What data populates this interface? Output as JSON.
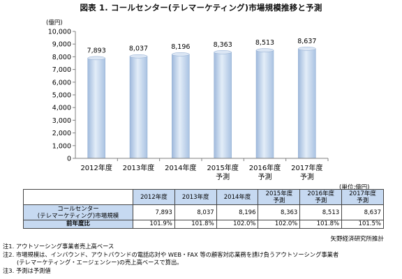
{
  "title": "図表 1. コールセンター(テレマーケティング)市場規模推移と予測",
  "chart_data": {
    "type": "bar",
    "y_unit": "(億円)",
    "categories": [
      [
        "2012年度"
      ],
      [
        "2013年度"
      ],
      [
        "2014年度"
      ],
      [
        "2015年度",
        "予測"
      ],
      [
        "2016年度",
        "予測"
      ],
      [
        "2017年度",
        "予測"
      ]
    ],
    "values": [
      7893,
      8037,
      8196,
      8363,
      8513,
      8637
    ],
    "value_labels": [
      "7,893",
      "8,037",
      "8,196",
      "8,363",
      "8,513",
      "8,637"
    ],
    "ylim": [
      0,
      10000
    ],
    "yticks": [
      0,
      1000,
      2000,
      3000,
      4000,
      5000,
      6000,
      7000,
      8000,
      9000,
      10000
    ],
    "ytick_labels": [
      "0",
      "1,000",
      "2,000",
      "3,000",
      "4,000",
      "5,000",
      "6,000",
      "7,000",
      "8,000",
      "9,000",
      "10,000"
    ],
    "grid": false,
    "bar_color": "#c6d9f1"
  },
  "table": {
    "unit": "(単位:億円)",
    "headers": [
      [
        "2012年度"
      ],
      [
        "2013年度"
      ],
      [
        "2014年度"
      ],
      [
        "2015年度",
        "予測"
      ],
      [
        "2016年度",
        "予測"
      ],
      [
        "2017年度",
        "予測"
      ]
    ],
    "rows": [
      {
        "label": [
          "コールセンター",
          "(テレマーケティング)市場規模"
        ],
        "values": [
          "7,893",
          "8,037",
          "8,196",
          "8,363",
          "8,513",
          "8,637"
        ]
      },
      {
        "label": [
          "前年度比"
        ],
        "values": [
          "101.9%",
          "101.8%",
          "102.0%",
          "102.0%",
          "101.8%",
          "101.5%"
        ]
      }
    ]
  },
  "source": "矢野経済研究所推計",
  "notes": [
    "注1. アウトソーシング事業者売上高ベース",
    "注2. 市場規模は、インバウンド、アウトバウンドの電話応対や WEB・FAX 等の顧客対応業務を請け負うアウトソーシング事業者",
    "(テレマーケティング・エージェンシー)の売上高ベースで算出。",
    "注3. 予測は予測値"
  ]
}
